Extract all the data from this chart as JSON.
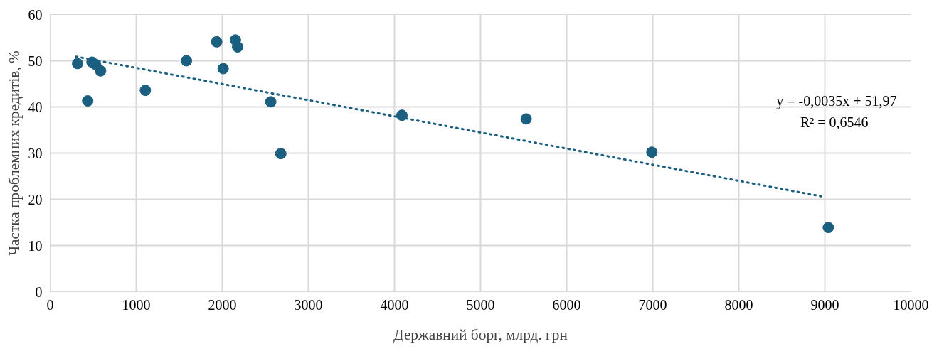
{
  "chart_data": {
    "type": "scatter",
    "xlabel": "Державний борг, млрд. грн",
    "ylabel": "Частка проблемних кредитів, %",
    "xlim": [
      0,
      10000
    ],
    "xticks": [
      0,
      1000,
      2000,
      3000,
      4000,
      5000,
      6000,
      7000,
      8000,
      9000,
      10000
    ],
    "ylim": [
      0,
      60
    ],
    "yticks": [
      0,
      10,
      20,
      30,
      40,
      50,
      60
    ],
    "grid": true,
    "series": [
      {
        "marker": "circle",
        "color": "#1a5e80",
        "x": [
          318,
          486,
          528,
          586,
          436,
          1106,
          1583,
          1935,
          2152,
          2178,
          2010,
          2563,
          2680,
          4087,
          5530,
          6990,
          9040
        ],
        "values": [
          49.4,
          49.7,
          49.2,
          47.8,
          41.3,
          43.6,
          50.0,
          54.1,
          54.5,
          53.0,
          48.3,
          41.1,
          29.9,
          38.2,
          37.4,
          30.2,
          13.9
        ]
      },
      {
        "type": "line",
        "line_style": "dotted",
        "color": "#1a5e80",
        "x": [
          300,
          9000
        ],
        "values": [
          50.9,
          20.5
        ]
      }
    ],
    "annotations": [
      "y = -0,0035x + 51,97",
      "R² = 0,6546"
    ]
  }
}
